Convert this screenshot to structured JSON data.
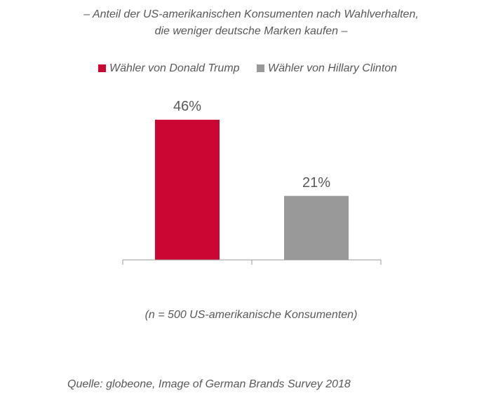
{
  "chart_data": {
    "type": "bar",
    "title": [
      "– Anteil der US-amerikanischen Konsumenten nach Wahlverhalten,",
      "die weniger deutsche Marken kaufen –"
    ],
    "categories": [
      null,
      null
    ],
    "series": [
      {
        "name": "Wähler von Donald Trump",
        "color": "#cc0633",
        "values": [
          46,
          null
        ],
        "value_labels": [
          "46%",
          null
        ]
      },
      {
        "name": "Wähler von Hillary Clinton",
        "color": "#999999",
        "values": [
          null,
          21
        ],
        "value_labels": [
          null,
          "21%"
        ]
      }
    ],
    "ylim": [
      0,
      50
    ],
    "note": "(n = 500 US-amerikanische Konsumenten)",
    "source": "Quelle: globeone, Image of German Brands Survey 2018"
  }
}
